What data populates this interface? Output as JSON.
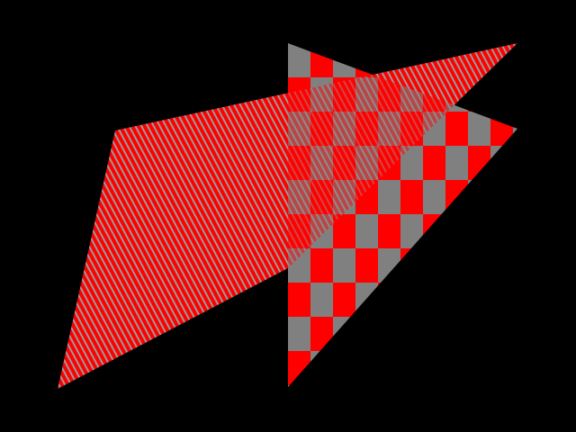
{
  "scene": {
    "background_color": "#000000",
    "stripe_quad": {
      "fill_pattern": "diagonal-stripes",
      "color_a": "#ff0000",
      "color_b": "#9a9a9a"
    },
    "checker_triangle": {
      "fill_pattern": "checkerboard",
      "color_a": "#ff0000",
      "color_b": "#808080"
    },
    "overlap_blend": {
      "color_a": "#ff8080",
      "color_b": "#cccccc",
      "mode": "translucent-overlay"
    }
  }
}
